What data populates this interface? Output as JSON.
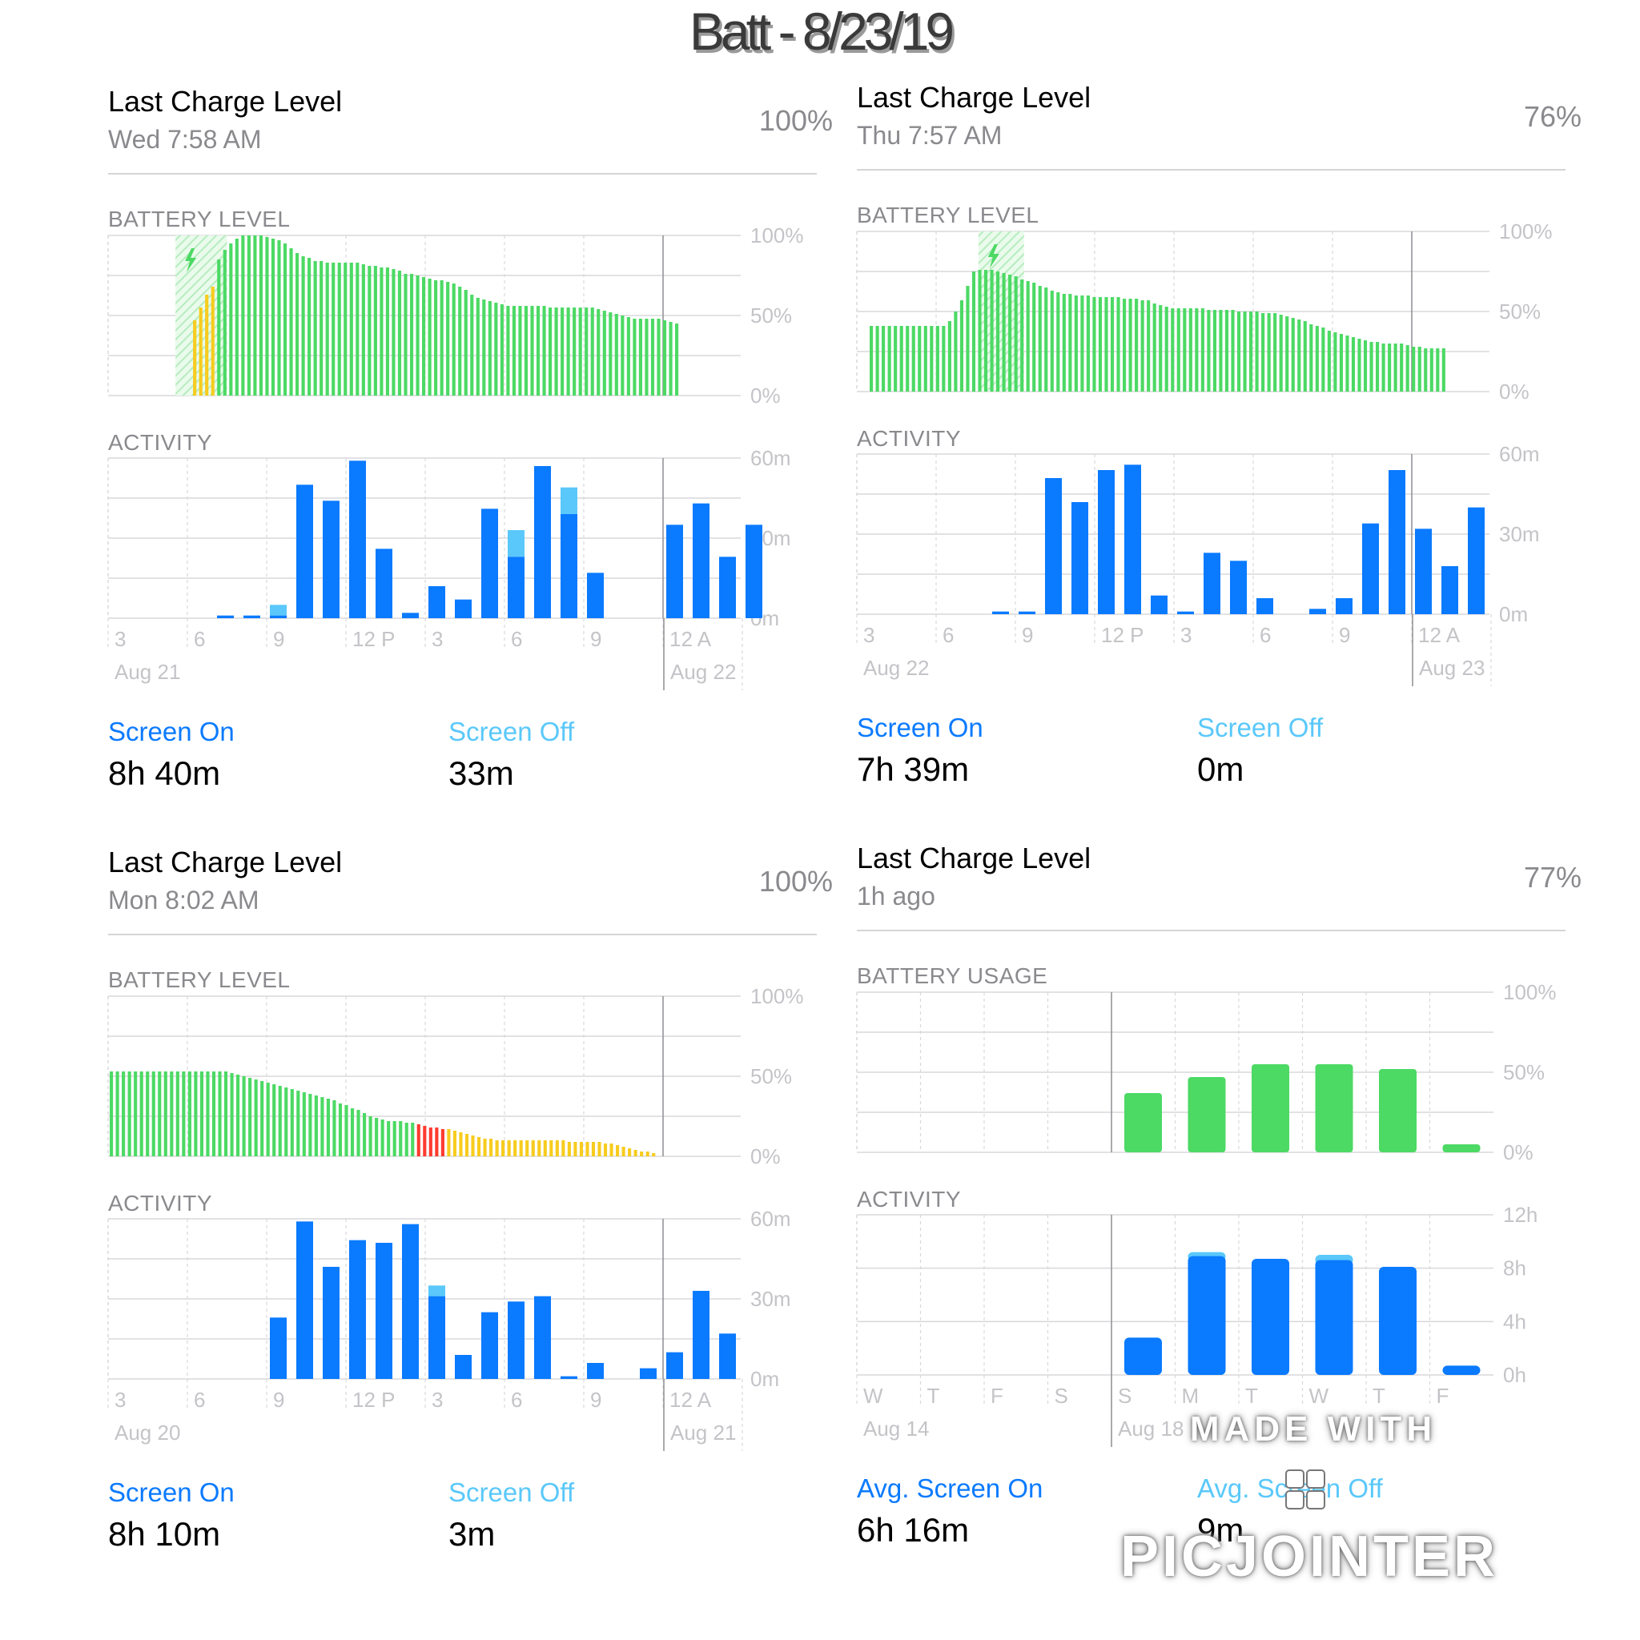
{
  "title": "Batt - 8/23/19",
  "colors": {
    "green": "#4cd964",
    "yellow": "#f7cc1f",
    "red": "#ff3b30",
    "blue": "#0a7aff",
    "lightblue": "#5ac8fa",
    "grid": "#d8d8dc",
    "label": "#c4c4c8"
  },
  "panels": [
    {
      "header": {
        "title": "Last Charge Level",
        "subtitle": "Wed 7:58 AM",
        "percent": "100%"
      },
      "battery": {
        "label": "BATTERY LEVEL",
        "yticks": [
          "100%",
          "50%",
          "0%"
        ],
        "ylim": [
          0,
          100
        ],
        "charging_zone": [
          4,
          7
        ],
        "levels": [
          0,
          0,
          0,
          0,
          47,
          55,
          63,
          68,
          85,
          91,
          95,
          98,
          100,
          100,
          100,
          100,
          99,
          98,
          97,
          95,
          92,
          89,
          87,
          86,
          84,
          84,
          83,
          83,
          83,
          83,
          83,
          83,
          82,
          81,
          81,
          80,
          80,
          79,
          78,
          76,
          76,
          75,
          74,
          73,
          72,
          72,
          71,
          70,
          68,
          66,
          63,
          61,
          60,
          59,
          58,
          57,
          56,
          56,
          56,
          56,
          56,
          56,
          56,
          55,
          55,
          55,
          55,
          55,
          55,
          55,
          55,
          54,
          53,
          52,
          51,
          50,
          49,
          48,
          48,
          48,
          48,
          48,
          47,
          46,
          45
        ],
        "level_colors": [
          "",
          "",
          "",
          "",
          "y",
          "y",
          "y",
          "y",
          "g",
          "g"
        ]
      },
      "activity": {
        "label": "ACTIVITY",
        "yticks": [
          "60m",
          "30m",
          "0m"
        ],
        "ylim": [
          0,
          60
        ],
        "xticks": [
          "3",
          "6",
          "9",
          "12 P",
          "3",
          "6",
          "9",
          "12 A"
        ],
        "date_left": "Aug 21",
        "date_right": "Aug 22",
        "on": [
          0,
          0,
          1,
          1,
          1,
          50,
          44,
          59,
          26,
          2,
          12,
          7,
          41,
          23,
          57,
          39,
          17,
          0,
          0,
          35,
          43,
          23,
          35
        ],
        "off": [
          0,
          0,
          0,
          0,
          4,
          0,
          0,
          0,
          0,
          0,
          0,
          0,
          0,
          10,
          0,
          10,
          0,
          0,
          0,
          0,
          0,
          0,
          0
        ]
      },
      "legend": {
        "on_label": "Screen On",
        "on_value": "8h 40m",
        "off_label": "Screen Off",
        "off_value": "33m"
      }
    },
    {
      "header": {
        "title": "Last Charge Level",
        "subtitle": "Thu 7:57 AM",
        "percent": "76%"
      },
      "battery": {
        "label": "BATTERY LEVEL",
        "yticks": [
          "100%",
          "50%",
          "0%"
        ],
        "ylim": [
          0,
          100
        ],
        "charging_zone": [
          13,
          15
        ],
        "levels": [
          41,
          41,
          41,
          41,
          41,
          41,
          41,
          41,
          41,
          41,
          41,
          41,
          41,
          44,
          50,
          57,
          66,
          75,
          76,
          76,
          76,
          75,
          74,
          73,
          72,
          70,
          69,
          68,
          66,
          65,
          63,
          62,
          61,
          61,
          60,
          60,
          60,
          59,
          59,
          59,
          59,
          59,
          58,
          58,
          58,
          57,
          57,
          55,
          54,
          53,
          52,
          52,
          52,
          52,
          52,
          52,
          51,
          51,
          51,
          51,
          51,
          50,
          50,
          50,
          50,
          49,
          49,
          49,
          48,
          47,
          46,
          45,
          44,
          42,
          41,
          40,
          38,
          37,
          36,
          35,
          34,
          33,
          32,
          31,
          31,
          30,
          30,
          30,
          30,
          29,
          28,
          28,
          27,
          27,
          27,
          27
        ],
        "level_colors": []
      },
      "activity": {
        "label": "ACTIVITY",
        "yticks": [
          "60m",
          "30m",
          "0m"
        ],
        "ylim": [
          0,
          60
        ],
        "xticks": [
          "3",
          "6",
          "9",
          "12 P",
          "3",
          "6",
          "9",
          "12 A"
        ],
        "date_left": "Aug 22",
        "date_right": "Aug 23",
        "on": [
          0,
          0,
          0,
          1,
          1,
          51,
          42,
          54,
          56,
          7,
          1,
          23,
          20,
          6,
          0,
          2,
          6,
          34,
          54,
          32,
          18,
          40,
          0
        ],
        "off": [
          0,
          0,
          0,
          0,
          0,
          0,
          0,
          0,
          0,
          0,
          0,
          0,
          0,
          0,
          0,
          0,
          0,
          0,
          0,
          0,
          0,
          0,
          0
        ]
      },
      "legend": {
        "on_label": "Screen On",
        "on_value": "7h 39m",
        "off_label": "Screen Off",
        "off_value": "0m"
      }
    },
    {
      "header": {
        "title": "Last Charge Level",
        "subtitle": "Mon 8:02 AM",
        "percent": "100%"
      },
      "battery": {
        "label": "BATTERY LEVEL",
        "yticks": [
          "100%",
          "50%",
          "0%"
        ],
        "ylim": [
          0,
          100
        ],
        "charging_zone": [],
        "levels": [
          53,
          53,
          53,
          53,
          53,
          53,
          53,
          53,
          53,
          53,
          53,
          53,
          53,
          53,
          53,
          53,
          53,
          53,
          53,
          53,
          52,
          51,
          50,
          49,
          48,
          47,
          46,
          45,
          44,
          43,
          42,
          41,
          40,
          39,
          38,
          37,
          36,
          35,
          33,
          32,
          30,
          29,
          27,
          25,
          24,
          23,
          22,
          22,
          22,
          21,
          21,
          20,
          19,
          18,
          18,
          17,
          17,
          16,
          15,
          14,
          13,
          12,
          11,
          11,
          10,
          10,
          10,
          10,
          10,
          10,
          10,
          10,
          10,
          10,
          10,
          10,
          9,
          9,
          9,
          9,
          9,
          9,
          8,
          8,
          7,
          6,
          5,
          4,
          3,
          3,
          2
        ],
        "level_colors": []
      },
      "activity": {
        "label": "ACTIVITY",
        "yticks": [
          "60m",
          "30m",
          "0m"
        ],
        "ylim": [
          0,
          60
        ],
        "xticks": [
          "3",
          "6",
          "9",
          "12 P",
          "3",
          "6",
          "9",
          "12 A"
        ],
        "date_left": "Aug 20",
        "date_right": "Aug 21",
        "on": [
          0,
          0,
          0,
          0,
          23,
          59,
          42,
          52,
          51,
          58,
          31,
          9,
          25,
          29,
          31,
          1,
          6,
          0,
          4,
          10,
          33,
          17,
          0
        ],
        "off": [
          0,
          0,
          0,
          0,
          0,
          0,
          0,
          0,
          0,
          0,
          4,
          0,
          0,
          0,
          0,
          0,
          0,
          0,
          0,
          0,
          0,
          0,
          0
        ]
      },
      "legend": {
        "on_label": "Screen On",
        "on_value": "8h 10m",
        "off_label": "Screen Off",
        "off_value": "3m"
      }
    },
    {
      "header": {
        "title": "Last Charge Level",
        "subtitle": "1h ago",
        "percent": "77%"
      },
      "battery": {
        "label": "BATTERY USAGE",
        "yticks": [
          "100%",
          "50%",
          "0%"
        ],
        "ylim": [
          0,
          100
        ],
        "days": [
          0,
          0,
          0,
          0,
          37,
          47,
          55,
          55,
          52,
          5
        ]
      },
      "activity": {
        "label": "ACTIVITY",
        "yticks": [
          "12h",
          "8h",
          "4h",
          "0h"
        ],
        "ylim": [
          0,
          12
        ],
        "xticks": [
          "W",
          "T",
          "F",
          "S",
          "S",
          "M",
          "T",
          "W",
          "T",
          "F"
        ],
        "date_left": "Aug 14",
        "date_right": "Aug 18",
        "on": [
          0,
          0,
          0,
          0,
          2.8,
          8.9,
          8.7,
          8.6,
          8.1,
          0.7
        ],
        "off": [
          0,
          0,
          0,
          0,
          0,
          0.3,
          0,
          0.4,
          0,
          0
        ]
      },
      "legend": {
        "on_label": "Avg. Screen On",
        "on_value": "6h 16m",
        "off_label": "Avg. Screen Off",
        "off_value": "9m"
      }
    }
  ],
  "watermark": {
    "line1": "MADE WITH",
    "line2": "PICJOINTER",
    "icon": "grid-logo-icon"
  }
}
